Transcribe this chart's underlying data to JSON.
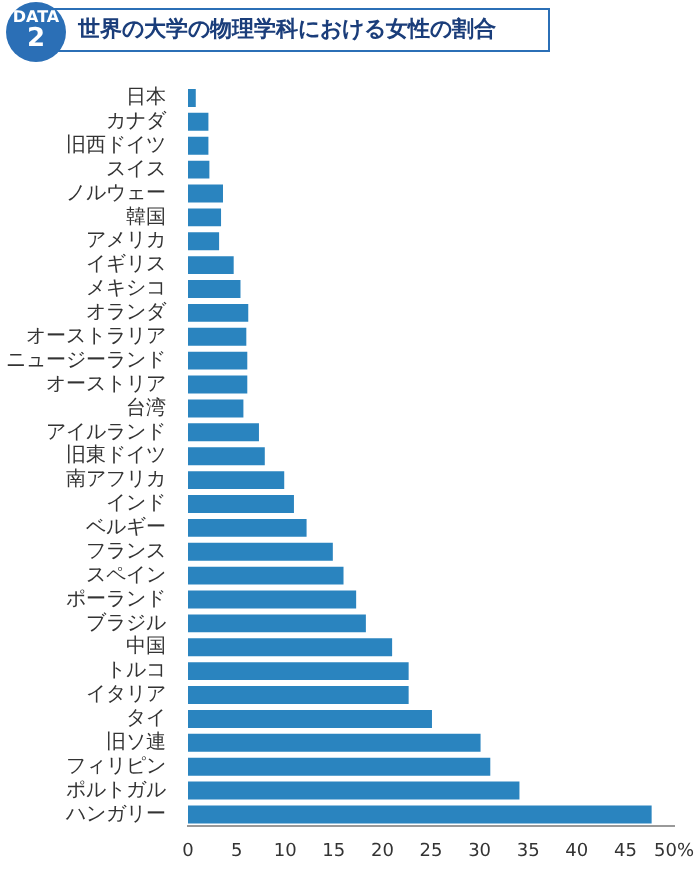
{
  "chart_data": {
    "type": "bar",
    "orientation": "horizontal",
    "title": "世界の大学の物理学科における女性の割合",
    "annotations": [
      "DATA",
      "2"
    ],
    "categories": [
      "日本",
      "カナダ",
      "旧西ドイツ",
      "スイス",
      "ノルウェー",
      "韓国",
      "アメリカ",
      "イギリス",
      "メキシコ",
      "オランダ",
      "オーストラリア",
      "ニュージーランド",
      "オーストリア",
      "台湾",
      "アイルランド",
      "旧東ドイツ",
      "南アフリカ",
      "インド",
      "ベルギー",
      "フランス",
      "スペイン",
      "ポーランド",
      "ブラジル",
      "中国",
      "トルコ",
      "イタリア",
      "タイ",
      "旧ソ連",
      "フィリピン",
      "ポルトガル",
      "ハンガリー"
    ],
    "values": [
      0.8,
      2.1,
      2.1,
      2.2,
      3.6,
      3.4,
      3.2,
      4.7,
      5.4,
      6.2,
      6.0,
      6.1,
      6.1,
      5.7,
      7.3,
      7.9,
      9.9,
      10.9,
      12.2,
      14.9,
      16.0,
      17.3,
      18.3,
      21.0,
      22.7,
      22.7,
      25.1,
      30.1,
      31.1,
      34.1,
      47.7
    ],
    "color": "#2a84bf",
    "xlim": [
      0,
      50
    ],
    "xticks": [
      0,
      5,
      10,
      15,
      20,
      25,
      30,
      35,
      40,
      45,
      {
        "value": 50,
        "label": "50%"
      }
    ],
    "grid": false,
    "legend": false
  }
}
